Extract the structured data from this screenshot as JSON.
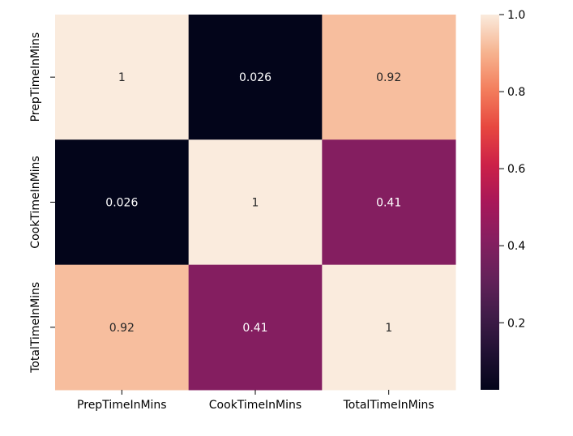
{
  "chart_data": {
    "type": "heatmap",
    "title": "",
    "xlabel": "",
    "ylabel": "",
    "x_categories": [
      "PrepTimeInMins",
      "CookTimeInMins",
      "TotalTimeInMins"
    ],
    "y_categories": [
      "PrepTimeInMins",
      "CookTimeInMins",
      "TotalTimeInMins"
    ],
    "values": [
      [
        1,
        0.026,
        0.92
      ],
      [
        0.026,
        1,
        0.41
      ],
      [
        0.92,
        0.41,
        1
      ]
    ],
    "annotations": [
      [
        "1",
        "0.026",
        "0.92"
      ],
      [
        "0.026",
        "1",
        "0.41"
      ],
      [
        "0.92",
        "0.41",
        "1"
      ]
    ],
    "colormap": "rocket",
    "vmin": 0.026,
    "vmax": 1.0,
    "colorbar": {
      "ticks": [
        0.2,
        0.4,
        0.6,
        0.8,
        1.0
      ],
      "tick_labels": [
        "0.2",
        "0.4",
        "0.6",
        "0.8",
        "1.0"
      ]
    },
    "grid": false
  }
}
